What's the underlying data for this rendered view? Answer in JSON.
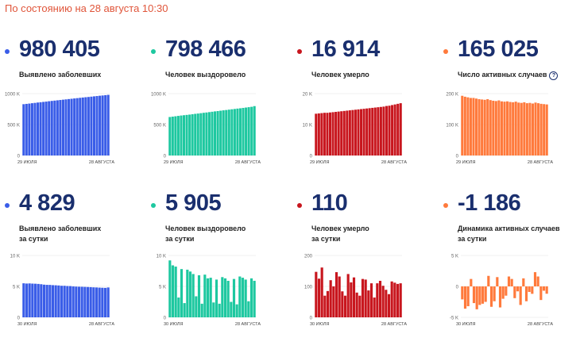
{
  "header": {
    "as_of": "По состоянию на 28 августа 10:30"
  },
  "cards": [
    {
      "id": "cases",
      "value": "980 405",
      "label_lines": [
        "Выявлено заболевших"
      ],
      "color": "#3a5de8",
      "chart_data": {
        "type": "bar",
        "x_start_label": "29 ИЮЛЯ",
        "x_end_label": "28 АВГУСТА",
        "y_ticks": [
          {
            "v": 0,
            "t": "0"
          },
          {
            "v": 500000,
            "t": "500 K"
          },
          {
            "v": 1000000,
            "t": "1000 K"
          }
        ],
        "ylim": [
          0,
          1000000
        ],
        "values": [
          829000,
          834000,
          839000,
          845000,
          850000,
          856000,
          861000,
          866000,
          871000,
          877000,
          882000,
          887000,
          892000,
          897000,
          902000,
          907000,
          912000,
          917000,
          922000,
          927000,
          932000,
          937000,
          942000,
          946000,
          951000,
          956000,
          961000,
          966000,
          970000,
          975000,
          980000
        ]
      }
    },
    {
      "id": "recovered",
      "value": "798 466",
      "label_lines": [
        "Человек выздоровело"
      ],
      "color": "#1ec8a0",
      "chart_data": {
        "type": "bar",
        "x_start_label": "29 ИЮЛЯ",
        "x_end_label": "28 АВГУСТА",
        "y_ticks": [
          {
            "v": 0,
            "t": "0"
          },
          {
            "v": 500000,
            "t": "500 K"
          },
          {
            "v": 1000000,
            "t": "1000 K"
          }
        ],
        "ylim": [
          0,
          1000000
        ],
        "values": [
          622000,
          628000,
          634000,
          640000,
          646000,
          651000,
          656000,
          661000,
          667000,
          673000,
          678000,
          684000,
          690000,
          695000,
          701000,
          707000,
          713000,
          718000,
          724000,
          730000,
          735000,
          741000,
          747000,
          752000,
          758000,
          763000,
          769000,
          775000,
          781000,
          787000,
          798000
        ]
      }
    },
    {
      "id": "deaths",
      "value": "16 914",
      "label_lines": [
        "Человек умерло"
      ],
      "color": "#c8161e",
      "chart_data": {
        "type": "bar",
        "x_start_label": "29 ИЮЛЯ",
        "x_end_label": "28 АВГУСТА",
        "y_ticks": [
          {
            "v": 0,
            "t": "0"
          },
          {
            "v": 10000,
            "t": "10 K"
          },
          {
            "v": 20000,
            "t": "20 K"
          }
        ],
        "ylim": [
          0,
          20000
        ],
        "values": [
          13500,
          13600,
          13700,
          13800,
          13800,
          13900,
          14000,
          14100,
          14200,
          14300,
          14400,
          14500,
          14600,
          14700,
          14800,
          14900,
          15000,
          15100,
          15200,
          15300,
          15400,
          15500,
          15600,
          15700,
          15800,
          16000,
          16100,
          16300,
          16500,
          16700,
          16900
        ]
      }
    },
    {
      "id": "active",
      "value": "165 025",
      "label_lines": [
        "Число активных случаев"
      ],
      "has_info_icon": true,
      "color": "#ff7a3c",
      "chart_data": {
        "type": "bar",
        "x_start_label": "29 ИЮЛЯ",
        "x_end_label": "28 АВГУСТА",
        "y_ticks": [
          {
            "v": 0,
            "t": "0"
          },
          {
            "v": 100000,
            "t": "100 K"
          },
          {
            "v": 200000,
            "t": "200 K"
          }
        ],
        "ylim": [
          0,
          200000
        ],
        "values": [
          193000,
          190000,
          188000,
          186000,
          186000,
          184000,
          182000,
          181000,
          180000,
          182000,
          179000,
          177000,
          176000,
          178000,
          175000,
          174000,
          175000,
          173000,
          172000,
          174000,
          171000,
          170000,
          172000,
          169000,
          170000,
          168000,
          171000,
          169000,
          167000,
          166000,
          165000
        ]
      }
    },
    {
      "id": "cases-daily",
      "value": "4 829",
      "label_lines": [
        "Выявлено заболевших",
        "за сутки"
      ],
      "color": "#3a5de8",
      "chart_data": {
        "type": "bar",
        "x_start_label": "30 ИЮЛЯ",
        "x_end_label": "28 АВГУСТА",
        "y_ticks": [
          {
            "v": 0,
            "t": "0"
          },
          {
            "v": 5000,
            "t": "5 K"
          },
          {
            "v": 10000,
            "t": "10 K"
          }
        ],
        "ylim": [
          0,
          10000
        ],
        "values": [
          5500,
          5460,
          5480,
          5450,
          5430,
          5400,
          5350,
          5280,
          5250,
          5240,
          5200,
          5180,
          5150,
          5100,
          5100,
          5060,
          5050,
          5000,
          4970,
          4950,
          4940,
          4920,
          4900,
          4880,
          4850,
          4830,
          4800,
          4780,
          4760,
          4829
        ]
      }
    },
    {
      "id": "recovered-daily",
      "value": "5 905",
      "label_lines": [
        "Человек выздоровело",
        "за сутки"
      ],
      "color": "#1ec8a0",
      "chart_data": {
        "type": "bar",
        "x_start_label": "30 ИЮЛЯ",
        "x_end_label": "28 АВГУСТА",
        "y_ticks": [
          {
            "v": 0,
            "t": "0"
          },
          {
            "v": 5000,
            "t": "5 K"
          },
          {
            "v": 10000,
            "t": "10 K"
          }
        ],
        "ylim": [
          0,
          10000
        ],
        "values": [
          9200,
          8400,
          8200,
          3200,
          7800,
          2300,
          7700,
          7400,
          7000,
          3400,
          6800,
          2200,
          6900,
          6300,
          6400,
          2400,
          6100,
          2200,
          6500,
          6300,
          5900,
          2500,
          6200,
          2100,
          6600,
          6400,
          6100,
          2600,
          6300,
          5905
        ]
      }
    },
    {
      "id": "deaths-daily",
      "value": "110",
      "label_lines": [
        "Человек умерло",
        "за сутки"
      ],
      "color": "#c8161e",
      "chart_data": {
        "type": "bar",
        "x_start_label": "30 ИЮЛЯ",
        "x_end_label": "28 АВГУСТА",
        "y_ticks": [
          {
            "v": 0,
            "t": "0"
          },
          {
            "v": 100,
            "t": "100"
          },
          {
            "v": 200,
            "t": "200"
          }
        ],
        "ylim": [
          0,
          200
        ],
        "values": [
          147,
          125,
          161,
          70,
          85,
          120,
          100,
          146,
          132,
          84,
          70,
          140,
          113,
          129,
          80,
          70,
          124,
          122,
          87,
          110,
          64,
          110,
          118,
          102,
          89,
          75,
          116,
          112,
          108,
          110
        ]
      }
    },
    {
      "id": "active-daily",
      "value": "-1 186",
      "label_lines": [
        "Динамика активных случаев",
        "за сутки"
      ],
      "color": "#ff7a3c",
      "chart_data": {
        "type": "bar",
        "x_start_label": "30 ИЮЛЯ",
        "x_end_label": "28 АВГУСТА",
        "y_ticks": [
          {
            "v": -5000,
            "t": "-5 K"
          },
          {
            "v": 0,
            "t": "0"
          },
          {
            "v": 5000,
            "t": "5 K"
          }
        ],
        "ylim": [
          -5000,
          5000
        ],
        "values": [
          -2100,
          -3600,
          -3200,
          1200,
          -2700,
          -3700,
          -3000,
          -2800,
          -2500,
          1700,
          -3300,
          -2400,
          1500,
          -3400,
          -2000,
          -1500,
          1600,
          1200,
          -1900,
          -800,
          -3000,
          1300,
          -2400,
          -900,
          -1200,
          2300,
          1600,
          -2200,
          -700,
          -1186
        ]
      }
    }
  ]
}
